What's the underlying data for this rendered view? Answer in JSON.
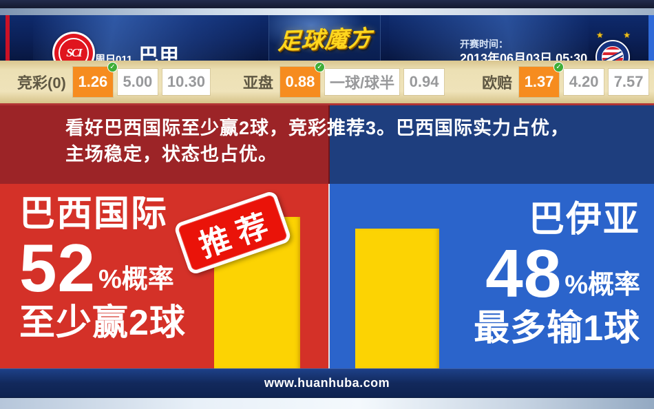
{
  "header": {
    "match_code": "周日011",
    "league": "巴甲",
    "site_logo": "足球魔方",
    "home_badge_monogram": "SCI",
    "away_star": "★",
    "kickoff_label": "开赛时间：",
    "kickoff_time": "2013年06月03日 05:30"
  },
  "odds": {
    "group1_label": "竞彩(0)",
    "group1": [
      "1.26",
      "5.00",
      "10.30"
    ],
    "group2_label": "亚盘",
    "group2": [
      "0.88",
      "一球/球半",
      "0.94"
    ],
    "group3_label": "欧赔",
    "group3": [
      "1.37",
      "4.20",
      "7.57"
    ]
  },
  "banner": {
    "text": "看好巴西国际至少赢2球，竞彩推荐3。巴西国际实力占优，主场稳定，状态也占优。"
  },
  "main": {
    "home": {
      "name": "巴西国际",
      "percent_suffix": "%概率",
      "outcome": "至少赢2球",
      "badge": "推荐"
    },
    "away": {
      "name": "巴伊亚",
      "percent_suffix": "%概率",
      "outcome": "最多输1球"
    }
  },
  "chart_data": {
    "type": "bar",
    "categories": [
      "巴西国际",
      "巴伊亚"
    ],
    "values": [
      52,
      48
    ],
    "unit": "%概率",
    "ylim": [
      0,
      100
    ],
    "bar_color": "#fcd303",
    "annotations": [
      "至少赢2球",
      "最多输1球"
    ],
    "legend_position": "none",
    "grid": false
  },
  "footer": {
    "url": "www.huanhuba.com"
  },
  "colors": {
    "home_dark": "#9c2427",
    "home_bright": "#d43128",
    "away_dark": "#1e3e7e",
    "away_bright": "#2b64cb",
    "bar_yellow": "#fcd303",
    "odds_highlight": "#f68c1f",
    "check_green": "#3fae38",
    "stamp_red": "#ea1309"
  }
}
